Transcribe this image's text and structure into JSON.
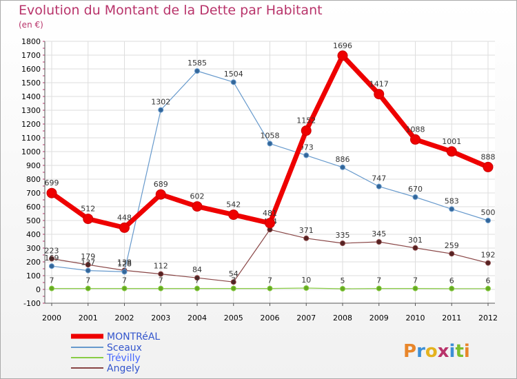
{
  "title": "Evolution du Montant de la Dette par Habitant",
  "subtitle": "(en €)",
  "brand": {
    "text": "Proxiti",
    "colors": [
      "#e8862a",
      "#3c8fd6",
      "#e4b21e",
      "#b8336a",
      "#3c8fd6",
      "#7cbf2e",
      "#e8862a"
    ]
  },
  "chart_data": {
    "type": "line",
    "title": "Evolution du Montant de la Dette par Habitant",
    "ylabel": "(en €)",
    "x": [
      "2000",
      "2001",
      "2002",
      "2003",
      "2004",
      "2005",
      "2006",
      "2007",
      "2008",
      "2009",
      "2010",
      "2011",
      "2012"
    ],
    "ylim": [
      -100,
      1800
    ],
    "yticks": [
      -100,
      0,
      100,
      200,
      300,
      400,
      500,
      600,
      700,
      800,
      900,
      1000,
      1100,
      1200,
      1300,
      1400,
      1500,
      1600,
      1700,
      1800
    ],
    "grid": true,
    "legend_position": "bottom-left",
    "series": [
      {
        "name": "MONTRéAL",
        "color": "#ee0000",
        "marker": "#cc0000",
        "values": [
          699,
          512,
          448,
          689,
          602,
          542,
          481,
          1152,
          1696,
          1417,
          1088,
          1001,
          888
        ],
        "labels": [
          "699",
          "512",
          "448",
          "689",
          "602",
          "542",
          "481",
          "1152",
          "1696",
          "1417",
          "1088",
          "1001",
          "888"
        ]
      },
      {
        "name": "Sceaux",
        "color": "#6699cc",
        "marker": "#336699",
        "values": [
          169,
          137,
          128,
          1302,
          1585,
          1504,
          1058,
          973,
          886,
          747,
          670,
          583,
          500
        ],
        "labels": [
          "169",
          "137",
          "128",
          "1302",
          "1585",
          "1504",
          "1058",
          "973",
          "886",
          "747",
          "670",
          "583",
          "500"
        ]
      },
      {
        "name": "Trévilly",
        "color": "#88cc44",
        "marker": "#66aa22",
        "values": [
          7,
          7,
          7,
          7,
          7,
          7,
          7,
          10,
          5,
          7,
          7,
          6,
          6
        ],
        "labels": [
          "7",
          "7",
          "7",
          "7",
          "7",
          "7",
          "7",
          "10",
          "5",
          "7",
          "7",
          "6",
          "6"
        ]
      },
      {
        "name": "Angely",
        "color": "#884444",
        "marker": "#552222",
        "values": [
          223,
          179,
          138,
          112,
          84,
          54,
          434,
          371,
          335,
          345,
          301,
          259,
          192
        ],
        "labels": [
          "223",
          "179",
          "138",
          "112",
          "84",
          "54",
          "434",
          "371",
          "335",
          "345",
          "301",
          "259",
          "192"
        ]
      }
    ]
  }
}
